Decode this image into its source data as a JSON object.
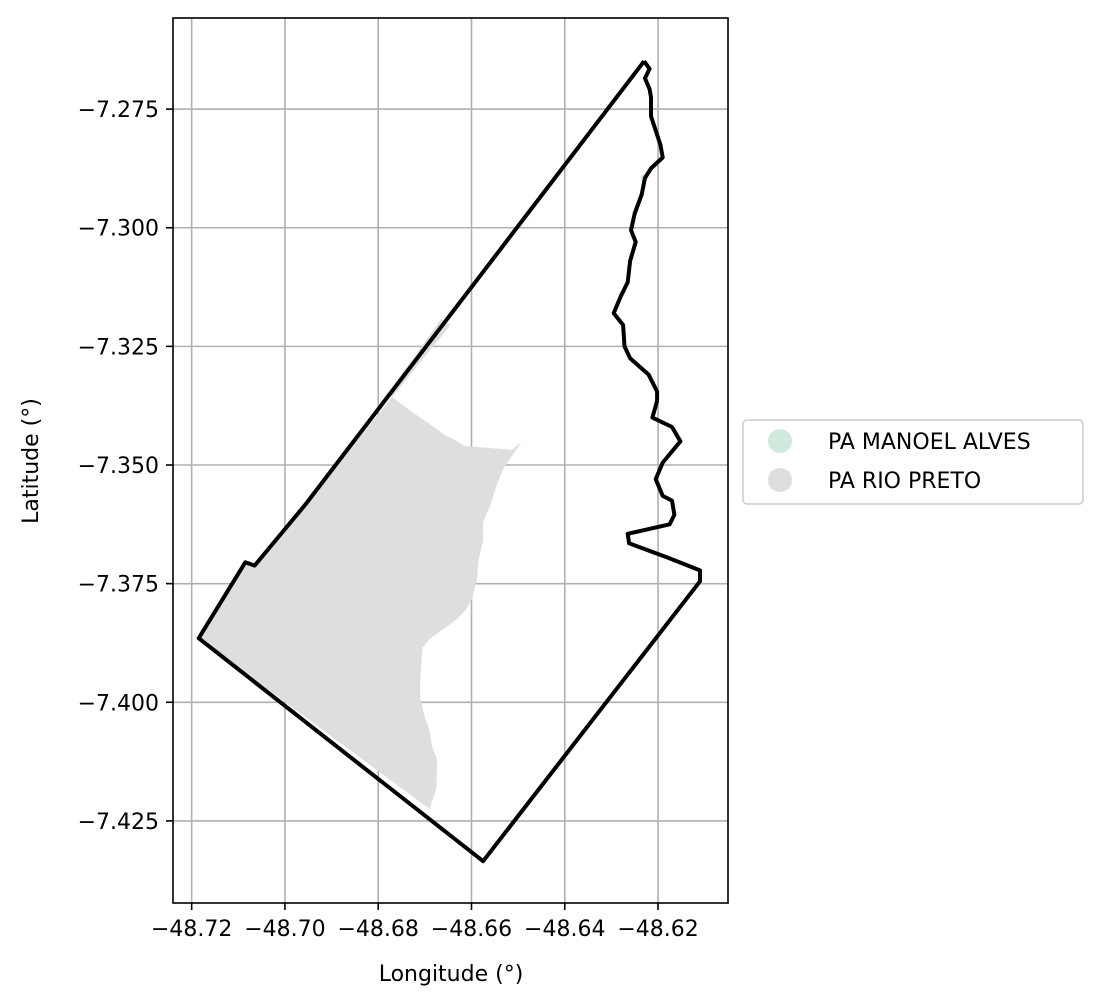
{
  "chart_data": {
    "type": "map",
    "xlabel": "Longitude (°)",
    "ylabel": "Latitude (°)",
    "xlim": [
      -48.724,
      -48.605
    ],
    "ylim": [
      -7.4423,
      -7.2558
    ],
    "xticks": [
      -48.72,
      -48.7,
      -48.68,
      -48.66,
      -48.64,
      -48.62
    ],
    "xtick_labels": [
      "−48.72",
      "−48.70",
      "−48.68",
      "−48.66",
      "−48.64",
      "−48.62"
    ],
    "yticks": [
      -7.275,
      -7.3,
      -7.325,
      -7.35,
      -7.375,
      -7.4,
      -7.425
    ],
    "ytick_labels": [
      "−7.275",
      "−7.300",
      "−7.325",
      "−7.350",
      "−7.375",
      "−7.400",
      "−7.425"
    ],
    "grid": true,
    "legend_position": "outside-right",
    "legend": [
      {
        "label": "PA MANOEL ALVES",
        "color": "#cfeadd"
      },
      {
        "label": "PA RIO PRETO",
        "color": "#dedede"
      }
    ],
    "boundary_color": "#000000",
    "boundary": [
      [
        -48.623,
        -7.2649
      ],
      [
        -48.6218,
        -7.2665
      ],
      [
        -48.6228,
        -7.2685
      ],
      [
        -48.6218,
        -7.2708
      ],
      [
        -48.6215,
        -7.2725
      ],
      [
        -48.6215,
        -7.2765
      ],
      [
        -48.6195,
        -7.2825
      ],
      [
        -48.619,
        -7.2852
      ],
      [
        -48.6215,
        -7.2875
      ],
      [
        -48.6228,
        -7.2895
      ],
      [
        -48.6235,
        -7.293
      ],
      [
        -48.625,
        -7.297
      ],
      [
        -48.6258,
        -7.3005
      ],
      [
        -48.6248,
        -7.303
      ],
      [
        -48.626,
        -7.307
      ],
      [
        -48.6265,
        -7.3115
      ],
      [
        -48.628,
        -7.3145
      ],
      [
        -48.6295,
        -7.318
      ],
      [
        -48.6275,
        -7.3205
      ],
      [
        -48.6272,
        -7.325
      ],
      [
        -48.626,
        -7.3275
      ],
      [
        -48.622,
        -7.331
      ],
      [
        -48.6202,
        -7.3345
      ],
      [
        -48.6202,
        -7.3365
      ],
      [
        -48.6212,
        -7.34
      ],
      [
        -48.617,
        -7.342
      ],
      [
        -48.6152,
        -7.345
      ],
      [
        -48.619,
        -7.3495
      ],
      [
        -48.6205,
        -7.353
      ],
      [
        -48.619,
        -7.3565
      ],
      [
        -48.617,
        -7.3575
      ],
      [
        -48.6165,
        -7.3605
      ],
      [
        -48.6175,
        -7.3625
      ],
      [
        -48.6265,
        -7.3645
      ],
      [
        -48.6262,
        -7.3665
      ],
      [
        -48.618,
        -7.3695
      ],
      [
        -48.611,
        -7.3722
      ],
      [
        -48.611,
        -7.3745
      ],
      [
        -48.6575,
        -7.4335
      ],
      [
        -48.7185,
        -7.3865
      ],
      [
        -48.7085,
        -7.3705
      ],
      [
        -48.7065,
        -7.3712
      ],
      [
        -48.6955,
        -7.3582
      ],
      [
        -48.623,
        -7.2649
      ]
    ],
    "regions": [
      {
        "label": "PA RIO PRETO",
        "polygon": [
          [
            -48.6645,
            -7.3205
          ],
          [
            -48.6665,
            -7.3192
          ],
          [
            -48.678,
            -7.335
          ],
          [
            -48.6725,
            -7.339
          ],
          [
            -48.668,
            -7.342
          ],
          [
            -48.666,
            -7.3435
          ],
          [
            -48.664,
            -7.3445
          ],
          [
            -48.6615,
            -7.346
          ],
          [
            -48.655,
            -7.3465
          ],
          [
            -48.6512,
            -7.3468
          ],
          [
            -48.6492,
            -7.345
          ],
          [
            -48.653,
            -7.3505
          ],
          [
            -48.6545,
            -7.354
          ],
          [
            -48.6558,
            -7.358
          ],
          [
            -48.6575,
            -7.362
          ],
          [
            -48.6575,
            -7.366
          ],
          [
            -48.6585,
            -7.37
          ],
          [
            -48.6588,
            -7.374
          ],
          [
            -48.6598,
            -7.378
          ],
          [
            -48.6612,
            -7.3805
          ],
          [
            -48.6632,
            -7.3825
          ],
          [
            -48.6652,
            -7.384
          ],
          [
            -48.6688,
            -7.3865
          ],
          [
            -48.6705,
            -7.3885
          ],
          [
            -48.671,
            -7.395
          ],
          [
            -48.671,
            -7.399
          ],
          [
            -48.6702,
            -7.4025
          ],
          [
            -48.669,
            -7.406
          ],
          [
            -48.6684,
            -7.4095
          ],
          [
            -48.6674,
            -7.412
          ],
          [
            -48.6675,
            -7.418
          ],
          [
            -48.669,
            -7.4225
          ],
          [
            -48.7185,
            -7.3865
          ],
          [
            -48.7085,
            -7.3705
          ],
          [
            -48.7065,
            -7.3712
          ],
          [
            -48.6955,
            -7.3582
          ],
          [
            -48.6645,
            -7.3205
          ]
        ]
      },
      {
        "label": "PA MANOEL ALVES",
        "polygon": [
          [
            -48.6228,
            -7.2885
          ],
          [
            -48.6232,
            -7.2912
          ],
          [
            -48.6238,
            -7.2892
          ],
          [
            -48.6228,
            -7.2885
          ]
        ]
      }
    ]
  }
}
